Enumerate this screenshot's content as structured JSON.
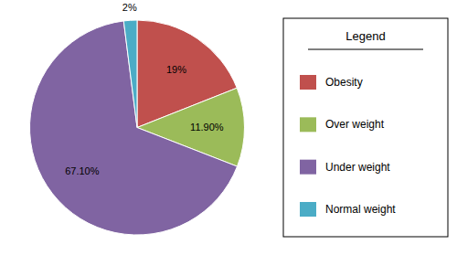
{
  "chart_data": {
    "type": "pie",
    "categories": [
      "Obesity",
      "Over weight",
      "Under weight",
      "Normal weight"
    ],
    "values": [
      19.0,
      11.9,
      67.1,
      2.0
    ],
    "value_labels": [
      "19%",
      "11.90%",
      "67.10%",
      "2%"
    ],
    "colors": [
      "#c0504d",
      "#9bbb59",
      "#8064a2",
      "#4bacc6"
    ],
    "legend_title": "Legend",
    "legend": "right",
    "data_labels": true
  }
}
